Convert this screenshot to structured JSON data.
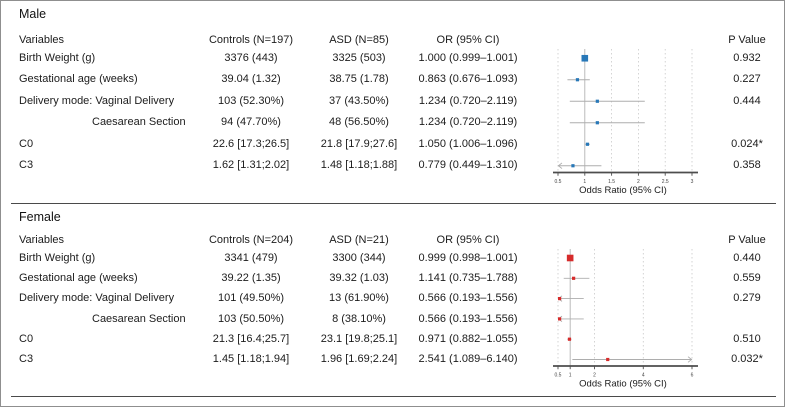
{
  "figure": {
    "sections": [
      {
        "title": "Male",
        "columns": {
          "variables": "Variables",
          "controls": "Controls (N=197)",
          "asd": "ASD (N=85)",
          "or": "OR (95% CI)",
          "p": "P Value"
        },
        "rows": [
          {
            "variable": "Birth Weight (g)",
            "indent": false,
            "controls": "3376 (443)",
            "asd": "3325 (503)",
            "or": "1.000 (0.999–1.001)",
            "p": "0.932"
          },
          {
            "variable": "Gestational age (weeks)",
            "indent": false,
            "controls": "39.04 (1.32)",
            "asd": "38.75 (1.78)",
            "or": "0.863 (0.676–1.093)",
            "p": "0.227"
          },
          {
            "variable": "Delivery mode: Vaginal Delivery",
            "indent": false,
            "controls": "103 (52.30%)",
            "asd": "37 (43.50%)",
            "or": "1.234 (0.720–2.119)",
            "p": "0.444"
          },
          {
            "variable": "Caesarean Section",
            "indent": true,
            "controls": "94 (47.70%)",
            "asd": "48 (56.50%)",
            "or": "1.234 (0.720–2.119)",
            "p": ""
          },
          {
            "variable": "C0",
            "indent": false,
            "controls": "22.6 [17.3;26.5]",
            "asd": "21.8 [17.9;27.6]",
            "or": "1.050 (1.006–1.096)",
            "p": "0.024*"
          },
          {
            "variable": "C3",
            "indent": false,
            "controls": "1.62 [1.31;2.02]",
            "asd": "1.48 [1.18;1.88]",
            "or": "0.779 (0.449–1.310)",
            "p": "0.358"
          }
        ]
      },
      {
        "title": "Female",
        "columns": {
          "variables": "Variables",
          "controls": "Controls (N=204)",
          "asd": "ASD (N=21)",
          "or": "OR (95% CI)",
          "p": "P Value"
        },
        "rows": [
          {
            "variable": "Birth Weight (g)",
            "indent": false,
            "controls": "3341 (479)",
            "asd": "3300 (344)",
            "or": "0.999 (0.998–1.001)",
            "p": "0.440"
          },
          {
            "variable": "Gestational age (weeks)",
            "indent": false,
            "controls": "39.22 (1.35)",
            "asd": "39.32 (1.03)",
            "or": "1.141 (0.735–1.788)",
            "p": "0.559"
          },
          {
            "variable": "Delivery mode: Vaginal Delivery",
            "indent": false,
            "controls": "101 (49.50%)",
            "asd": "13 (61.90%)",
            "or": "0.566 (0.193–1.556)",
            "p": "0.279"
          },
          {
            "variable": "Caesarean Section",
            "indent": true,
            "controls": "103 (50.50%)",
            "asd": "8 (38.10%)",
            "or": "0.566 (0.193–1.556)",
            "p": ""
          },
          {
            "variable": "C0",
            "indent": false,
            "controls": "21.3 [16.4;25.7]",
            "asd": "23.1 [19.8;25.1]",
            "or": "0.971 (0.882–1.055)",
            "p": "0.510"
          },
          {
            "variable": "C3",
            "indent": false,
            "controls": "1.45 [1.18;1.94]",
            "asd": "1.96 [1.69;2.24]",
            "or": "2.541 (1.089–6.140)",
            "p": "0.032*"
          }
        ]
      }
    ]
  },
  "chart_data": [
    {
      "type": "forest",
      "group": "Male",
      "xlabel": "Odds Ratio (95% CI)",
      "xlim": [
        0.5,
        3
      ],
      "ticks": [
        0.5,
        1,
        1.5,
        2,
        2.5,
        3
      ],
      "tick_labels": [
        "0.5",
        "1",
        "1.5",
        "2",
        "2.5",
        "3"
      ],
      "ref_line": 1,
      "grid": "dashed-vertical",
      "marker_color": "#2878b8",
      "rows": [
        {
          "label": "Birth Weight (g)",
          "or": 1.0,
          "ci_low": 0.999,
          "ci_high": 1.001,
          "big_marker": true
        },
        {
          "label": "Gestational age (weeks)",
          "or": 0.863,
          "ci_low": 0.676,
          "ci_high": 1.093,
          "big_marker": false
        },
        {
          "label": "Delivery mode: Vaginal Delivery",
          "or": 1.234,
          "ci_low": 0.72,
          "ci_high": 2.119,
          "big_marker": false
        },
        {
          "label": "Caesarean Section",
          "or": 1.234,
          "ci_low": 0.72,
          "ci_high": 2.119,
          "big_marker": false
        },
        {
          "label": "C0",
          "or": 1.05,
          "ci_low": 1.006,
          "ci_high": 1.096,
          "big_marker": false
        },
        {
          "label": "C3",
          "or": 0.779,
          "ci_low": 0.449,
          "ci_high": 1.31,
          "big_marker": false
        }
      ]
    },
    {
      "type": "forest",
      "group": "Female",
      "xlabel": "Odds Ratio (95% CI)",
      "xlim": [
        0.5,
        6
      ],
      "ticks": [
        0.5,
        1,
        2,
        4,
        6
      ],
      "tick_labels": [
        "0.5",
        "1",
        "2",
        "4",
        "6"
      ],
      "ref_line": 1,
      "grid": "dashed-vertical",
      "marker_color": "#d62b2b",
      "rows": [
        {
          "label": "Birth Weight (g)",
          "or": 0.999,
          "ci_low": 0.998,
          "ci_high": 1.001,
          "big_marker": true
        },
        {
          "label": "Gestational age (weeks)",
          "or": 1.141,
          "ci_low": 0.735,
          "ci_high": 1.788,
          "big_marker": false
        },
        {
          "label": "Delivery mode: Vaginal Delivery",
          "or": 0.566,
          "ci_low": 0.193,
          "ci_high": 1.556,
          "big_marker": false
        },
        {
          "label": "Caesarean Section",
          "or": 0.566,
          "ci_low": 0.193,
          "ci_high": 1.556,
          "big_marker": false
        },
        {
          "label": "C0",
          "or": 0.971,
          "ci_low": 0.882,
          "ci_high": 1.055,
          "big_marker": false
        },
        {
          "label": "C3",
          "or": 2.541,
          "ci_low": 1.089,
          "ci_high": 6.14,
          "big_marker": false
        }
      ]
    }
  ]
}
